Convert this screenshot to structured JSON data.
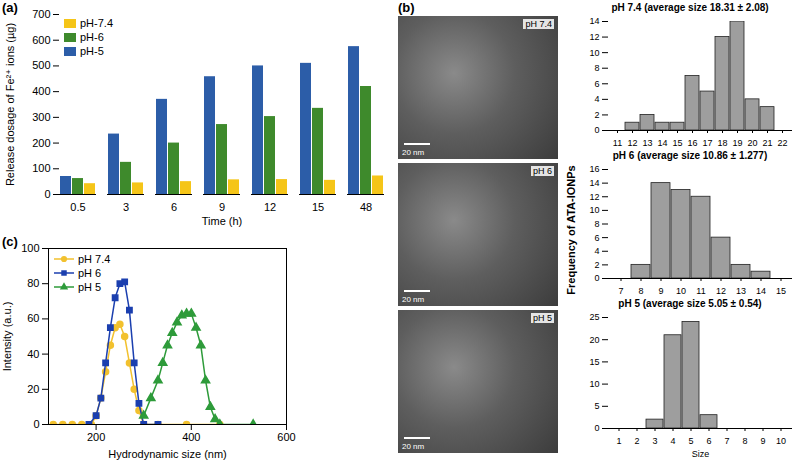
{
  "chart_data": [
    {
      "panel": "(a)",
      "type": "bar",
      "x_label": "Time (h)",
      "y_label": "Release dosage of Fe²⁺ ions (µg)",
      "categories": [
        "0.5",
        "3",
        "6",
        "9",
        "12",
        "15",
        "48"
      ],
      "series": [
        {
          "name": "pH-7.4",
          "color": "#F5C518",
          "values": [
            42,
            45,
            50,
            57,
            58,
            55,
            72
          ]
        },
        {
          "name": "pH-6",
          "color": "#3E8A2C",
          "values": [
            62,
            125,
            200,
            272,
            303,
            335,
            420
          ]
        },
        {
          "name": "pH-5",
          "color": "#2C5DA8",
          "values": [
            70,
            235,
            370,
            458,
            500,
            510,
            575
          ]
        }
      ],
      "ylim": [
        0,
        700
      ],
      "yticks": [
        0,
        100,
        200,
        300,
        400,
        500,
        600,
        700
      ],
      "grid": false,
      "legend": "top-left"
    },
    {
      "panel": "(c)",
      "type": "line",
      "x_label": "Hydrodynamic size (nm)",
      "y_label": "Intensity (a.u.)",
      "series": [
        {
          "name": "pH 7.4",
          "color": "#F2C12E",
          "marker": "circle",
          "x": [
            110,
            130,
            150,
            170,
            190,
            200,
            210,
            220,
            230,
            240,
            250,
            260,
            270,
            280,
            290,
            300,
            330,
            390,
            460
          ],
          "values": [
            0,
            0,
            0,
            0,
            0,
            5,
            15,
            30,
            45,
            55,
            57,
            50,
            35,
            20,
            8,
            0,
            0,
            0,
            0
          ]
        },
        {
          "name": "pH 6",
          "color": "#1B3FAF",
          "marker": "square",
          "x": [
            185,
            200,
            210,
            220,
            230,
            240,
            250,
            260,
            270,
            280,
            290,
            300,
            330
          ],
          "values": [
            0,
            5,
            15,
            35,
            55,
            72,
            80,
            81,
            65,
            35,
            12,
            0,
            0
          ]
        },
        {
          "name": "pH 5",
          "color": "#2E9B3A",
          "marker": "triangle",
          "x": [
            300,
            315,
            330,
            340,
            350,
            360,
            370,
            380,
            390,
            400,
            410,
            420,
            430,
            440,
            450,
            460,
            530
          ],
          "values": [
            5,
            15,
            25,
            35,
            45,
            52,
            58,
            62,
            63,
            63,
            55,
            45,
            25,
            10,
            3,
            0,
            0
          ]
        }
      ],
      "xlim": [
        100,
        600
      ],
      "xticks": [
        200,
        400,
        600
      ],
      "ylim": [
        0,
        100
      ],
      "yticks": [
        0,
        20,
        40,
        60,
        80,
        100
      ],
      "grid": false,
      "legend": "top-left"
    },
    {
      "type": "bar",
      "title": "pH 7.4 (average size 18.31 ± 2.08)",
      "categories": [
        11,
        12,
        13,
        14,
        15,
        16,
        17,
        18,
        19,
        20,
        21,
        22
      ],
      "values": [
        0,
        1,
        2,
        1,
        1,
        7,
        5,
        12,
        14,
        4,
        3,
        0
      ],
      "color": "#9E9E9E",
      "ylim": [
        0,
        14
      ],
      "yticks": [
        0,
        2,
        4,
        6,
        8,
        10,
        12,
        14
      ]
    },
    {
      "type": "bar",
      "title": "pH 6 (average size 10.86 ± 1.277)",
      "categories": [
        7,
        8,
        9,
        10,
        11,
        12,
        13,
        14,
        15
      ],
      "values": [
        0,
        2,
        14,
        13,
        12,
        6,
        2,
        1,
        0
      ],
      "color": "#9E9E9E",
      "ylim": [
        0,
        16
      ],
      "yticks": [
        0,
        2,
        4,
        6,
        8,
        10,
        12,
        14,
        16
      ]
    },
    {
      "type": "bar",
      "title": "pH 5 (average size 5.05 ± 0.54)",
      "x_label": "Size",
      "categories": [
        1,
        2,
        3,
        4,
        5,
        6,
        7,
        8,
        9,
        10
      ],
      "values": [
        0,
        0,
        2,
        21,
        24,
        3,
        0,
        0,
        0,
        0
      ],
      "color": "#9E9E9E",
      "ylim": [
        0,
        25
      ],
      "yticks": [
        0,
        5,
        10,
        15,
        20,
        25
      ]
    }
  ],
  "panel_b": {
    "panel": "(b)",
    "y_label": "Frequency of ATA-IONPs",
    "images": [
      {
        "label": "pH 7.4",
        "scale_bar": "20 nm"
      },
      {
        "label": "pH 6",
        "scale_bar": "20 nm"
      },
      {
        "label": "pH 5",
        "scale_bar": "20 nm"
      }
    ]
  }
}
